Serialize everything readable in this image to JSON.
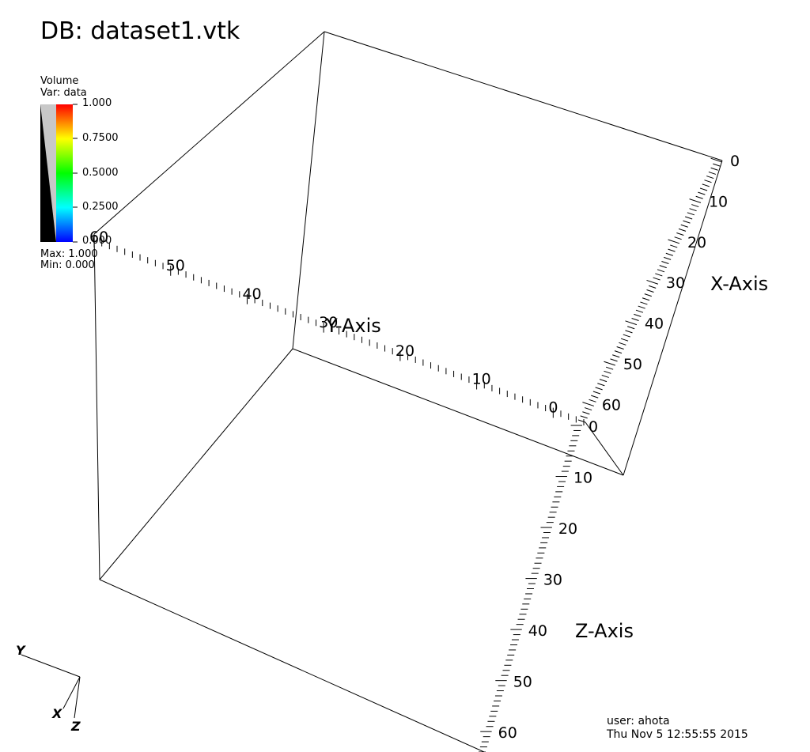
{
  "db_title": "DB: dataset1.vtk",
  "legend": {
    "title": "Volume",
    "var": "Var: data",
    "ticks": [
      "1.000",
      "0.7500",
      "0.5000",
      "0.2500",
      "0.000"
    ],
    "max": "Max:  1.000",
    "min": "Min:  0.000",
    "colors": [
      "#ff0000",
      "#ffff00",
      "#00ff00",
      "#00ffff",
      "#0000ff"
    ]
  },
  "axes": {
    "x_label": "X-Axis",
    "y_label": "Y-Axis",
    "z_label": "Z-Axis",
    "x_ticks": [
      "0",
      "10",
      "20",
      "30",
      "40",
      "50",
      "60"
    ],
    "y_ticks": [
      "60",
      "50",
      "40",
      "30",
      "20",
      "10",
      "0"
    ],
    "z_ticks": [
      "0",
      "10",
      "20",
      "30",
      "40",
      "50",
      "60"
    ]
  },
  "triad": {
    "x": "X",
    "y": "Y",
    "z": "Z"
  },
  "user_info": "user: ahota",
  "timestamp": "Thu Nov  5 12:55:55 2015"
}
